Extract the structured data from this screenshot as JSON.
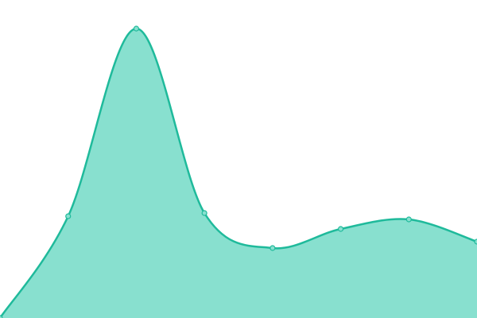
{
  "chart_data": {
    "type": "area",
    "categories": [
      null,
      null,
      null,
      null,
      null,
      null,
      null,
      null
    ],
    "values": [
      0,
      32,
      91,
      33,
      22,
      28,
      31,
      24
    ],
    "ylim": [
      0,
      100
    ],
    "color": "#1fba9b",
    "fill_color": "#88e0cf",
    "smooth": true,
    "markers": true
  }
}
